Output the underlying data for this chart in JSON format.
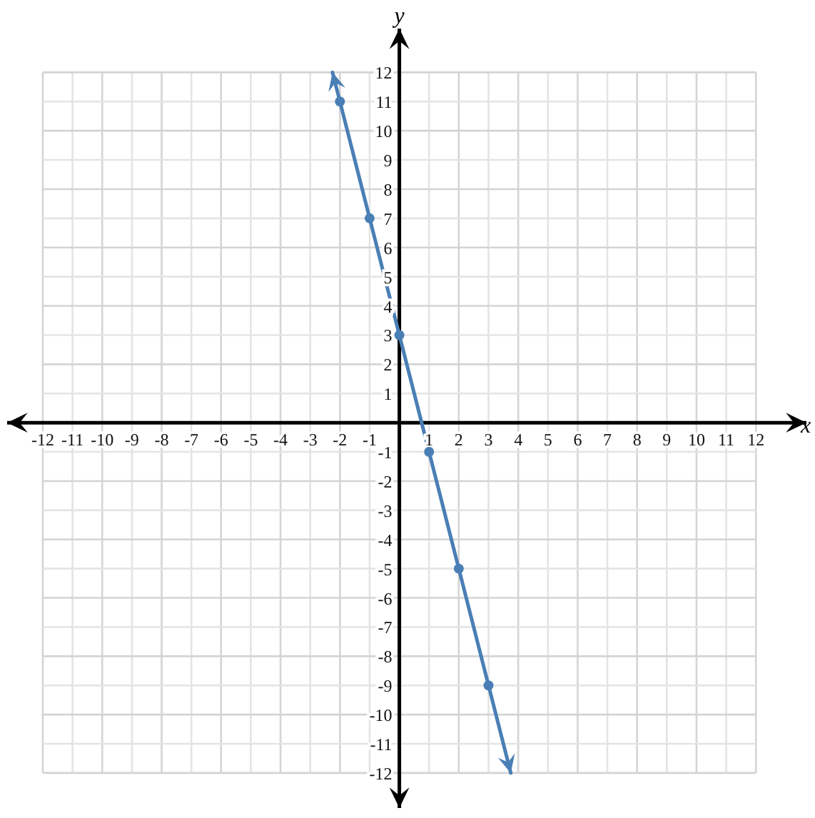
{
  "chart_data": {
    "type": "line",
    "xlabel": "x",
    "ylabel": "y",
    "xlim": [
      -13.2,
      13.7
    ],
    "ylim": [
      -13.2,
      13.5
    ],
    "xticks": [
      -12,
      -11,
      -10,
      -9,
      -8,
      -7,
      -6,
      -5,
      -4,
      -3,
      -2,
      -1,
      1,
      2,
      3,
      4,
      5,
      6,
      7,
      8,
      9,
      10,
      11,
      12
    ],
    "yticks": [
      -12,
      -11,
      -10,
      -9,
      -8,
      -7,
      -6,
      -5,
      -4,
      -3,
      -2,
      -1,
      1,
      2,
      3,
      4,
      5,
      6,
      7,
      8,
      9,
      10,
      11,
      12
    ],
    "grid": true,
    "marker": "circle",
    "series": [
      {
        "color": "#4a7fb5",
        "x": [
          -2,
          -1,
          0,
          1,
          2,
          3
        ],
        "values": [
          11,
          7,
          3,
          -1,
          -5,
          -9
        ]
      }
    ]
  }
}
